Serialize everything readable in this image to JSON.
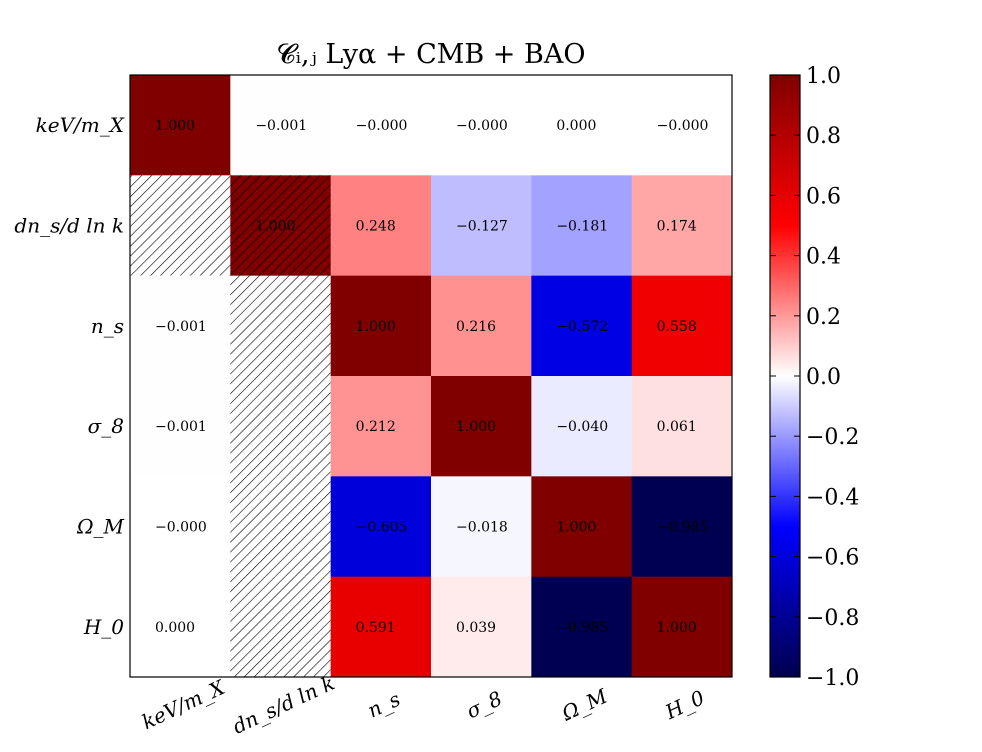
{
  "chart_data": {
    "type": "heatmap",
    "title": "𝓒ᵢ,ⱼ Lyα  +  CMB  +  BAO",
    "row_labels": [
      "keV/m_X",
      "dn_s/d ln k",
      "n_s",
      "σ_8",
      "Ω_M",
      "H_0"
    ],
    "col_labels": [
      "keV/m_X",
      "dn_s/d ln k",
      "n_s",
      "σ_8",
      "Ω_M",
      "H_0"
    ],
    "cells": [
      [
        "1.000",
        "−0.001",
        "−0.000",
        "−0.000",
        "0.000",
        "−0.000"
      ],
      [
        "",
        "1.000",
        "0.248",
        "−0.127",
        "−0.181",
        "0.174"
      ],
      [
        "−0.001",
        "",
        "1.000",
        "0.216",
        "−0.572",
        "0.558"
      ],
      [
        "−0.001",
        "",
        "0.212",
        "1.000",
        "−0.040",
        "0.061"
      ],
      [
        "−0.000",
        "",
        "−0.605",
        "−0.018",
        "1.000",
        "−0.985"
      ],
      [
        "0.000",
        "",
        "0.591",
        "0.039",
        "−0.985",
        "1.000"
      ]
    ],
    "values": [
      [
        1.0,
        -0.001,
        -0.0,
        -0.0,
        0.0,
        -0.0
      ],
      [
        null,
        1.0,
        0.248,
        -0.127,
        -0.181,
        0.174
      ],
      [
        -0.001,
        null,
        1.0,
        0.216,
        -0.572,
        0.558
      ],
      [
        -0.001,
        null,
        0.212,
        1.0,
        -0.04,
        0.061
      ],
      [
        -0.0,
        null,
        -0.605,
        -0.018,
        1.0,
        -0.985
      ],
      [
        0.0,
        null,
        0.591,
        0.039,
        -0.985,
        1.0
      ]
    ],
    "hatched": [
      [
        1,
        0
      ],
      [
        1,
        1
      ],
      [
        2,
        1
      ],
      [
        3,
        1
      ],
      [
        4,
        1
      ],
      [
        5,
        1
      ]
    ],
    "colormap": "seismic",
    "colors": {
      "negative_end": "#00004d",
      "blue": "#0000ff",
      "white": "#ffffff",
      "red": "#ff0000",
      "positive_end": "#800000"
    },
    "vmin": -1.0,
    "vmax": 1.0,
    "colorbar_ticks": [
      "1.0",
      "0.8",
      "0.6",
      "0.4",
      "0.2",
      "0.0",
      "−0.2",
      "−0.4",
      "−0.6",
      "−0.8",
      "−1.0"
    ],
    "colorbar_values": [
      1.0,
      0.8,
      0.6,
      0.4,
      0.2,
      0.0,
      -0.2,
      -0.4,
      -0.6,
      -0.8,
      -1.0
    ]
  }
}
